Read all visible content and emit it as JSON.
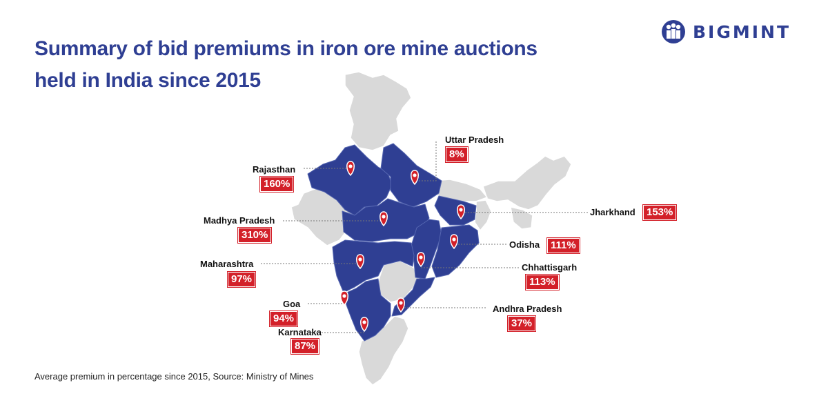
{
  "title_line1": "Summary of bid premiums in iron ore mine auctions",
  "title_line2": "held in India since 2015",
  "brand": "BIGMINT",
  "footnote": "Average premium in percentage since 2015, Source: Ministry of Mines",
  "colors": {
    "brand": "#2f3f93",
    "badge": "#d32029",
    "land": "#d9d9d9",
    "highlight": "#2f3f93"
  },
  "states": [
    {
      "name": "Uttar Pradesh",
      "premium": "8%"
    },
    {
      "name": "Rajasthan",
      "premium": "160%"
    },
    {
      "name": "Jharkhand",
      "premium": "153%"
    },
    {
      "name": "Madhya Pradesh",
      "premium": "310%"
    },
    {
      "name": "Odisha",
      "premium": "111%"
    },
    {
      "name": "Maharashtra",
      "premium": "97%"
    },
    {
      "name": "Chhattisgarh",
      "premium": "113%"
    },
    {
      "name": "Goa",
      "premium": "94%"
    },
    {
      "name": "Andhra Pradesh",
      "premium": "37%"
    },
    {
      "name": "Karnataka",
      "premium": "87%"
    }
  ]
}
